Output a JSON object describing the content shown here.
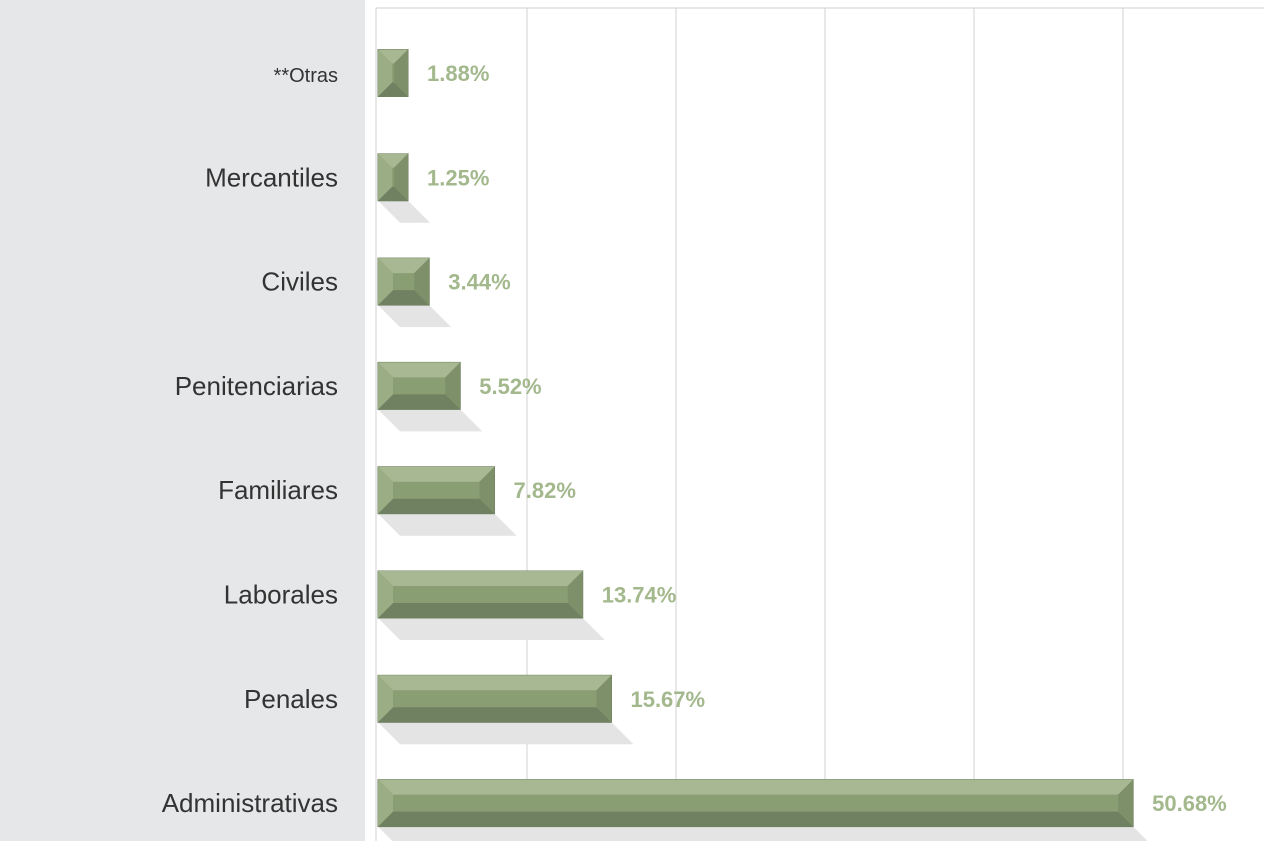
{
  "chart_data": {
    "type": "bar",
    "orientation": "horizontal",
    "categories": [
      "**Otras",
      "Mercantiles",
      "Civiles",
      "Penitenciarias",
      "Familiares",
      "Laborales",
      "Penales",
      "Administrativas"
    ],
    "values": [
      1.88,
      1.25,
      3.44,
      5.52,
      7.82,
      13.74,
      15.67,
      50.68
    ],
    "value_labels": [
      "1.88%",
      "1.25%",
      "3.44%",
      "5.52%",
      "7.82%",
      "13.74%",
      "15.67%",
      "50.68%"
    ],
    "title": "",
    "xlabel": "",
    "ylabel": "",
    "xlim": [
      0,
      60
    ],
    "grid": true,
    "legend": "none",
    "colors": {
      "bar": "#8a9e74",
      "bar_light": "#a8b892",
      "bar_dark": "#6f8160",
      "value_label": "#a3b88c",
      "label_panel": "#e6e7e8",
      "gridline": "#d0d0d0"
    }
  }
}
